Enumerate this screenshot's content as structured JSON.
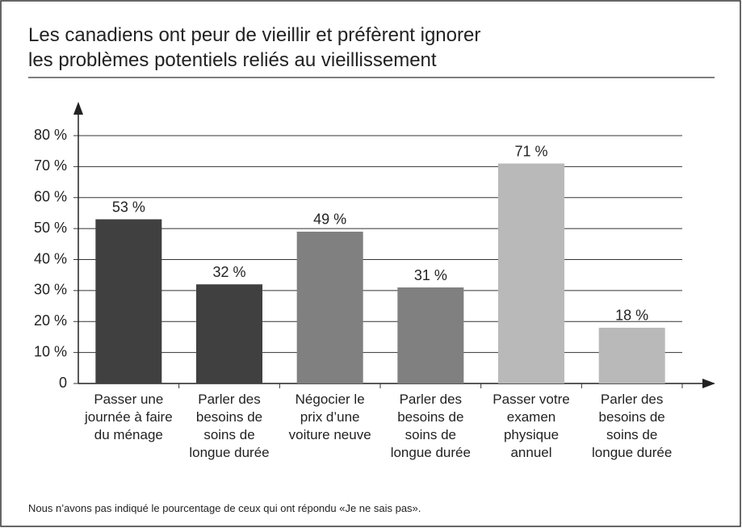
{
  "chart_data": {
    "type": "bar",
    "title": "Les canadiens ont peur de vieillir et préfèrent ignorer\nles problèmes potentiels reliés au vieillissement",
    "categories": [
      "Passer une\njournée à faire\ndu ménage",
      "Parler des\nbesoins de\nsoins de\nlongue durée",
      "Négocier le\nprix d’une\nvoiture neuve",
      "Parler des\nbesoins de\nsoins de\nlongue durée",
      "Passer votre\nexamen\nphysique\nannuel",
      "Parler des\nbesoins de\nsoins de\nlongue durée"
    ],
    "values": [
      53,
      32,
      49,
      31,
      71,
      18
    ],
    "value_labels": [
      "53 %",
      "32 %",
      "49 %",
      "31 %",
      "71 %",
      "18 %"
    ],
    "colors": [
      "#404040",
      "#404040",
      "#808080",
      "#808080",
      "#b9b9b9",
      "#b9b9b9"
    ],
    "ylim": [
      0,
      80
    ],
    "yticks": [
      0,
      {
        "value": 10,
        "label": "10 %"
      },
      {
        "value": 20,
        "label": "20 %"
      },
      {
        "value": 30,
        "label": "30 %"
      },
      {
        "value": 40,
        "label": "40 %"
      },
      {
        "value": 50,
        "label": "50 %"
      },
      {
        "value": 60,
        "label": "60 %"
      },
      {
        "value": 70,
        "label": "70 %"
      },
      {
        "value": 80,
        "label": "80 %"
      }
    ],
    "grid": true,
    "note": "Nous n’avons pas indiqué le pourcentage de ceux qui ont répondu «Je ne sais pas»."
  }
}
